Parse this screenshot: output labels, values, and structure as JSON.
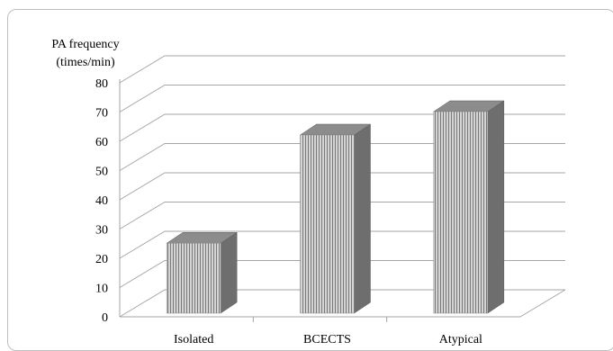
{
  "chart_data": {
    "type": "bar",
    "title": "",
    "ylabel_lines": [
      "PA frequency",
      "(times/min)"
    ],
    "xlabel": "",
    "categories": [
      "Isolated",
      "BCECTS",
      "Atypical"
    ],
    "values": [
      27,
      64,
      72
    ],
    "ylim": [
      0,
      80
    ],
    "yticks": [
      0,
      10,
      20,
      30,
      40,
      50,
      60,
      70,
      80
    ],
    "grid": true,
    "legend": "none",
    "style": "3d-column",
    "colors": {
      "bar_front": "#d4d4d4",
      "bar_stripe": "#7a7a7a",
      "bar_side": "#6e6e6e",
      "bar_top": "#8c8c8c",
      "grid": "#a6a6a6",
      "frame": "#bfbfbf"
    }
  }
}
